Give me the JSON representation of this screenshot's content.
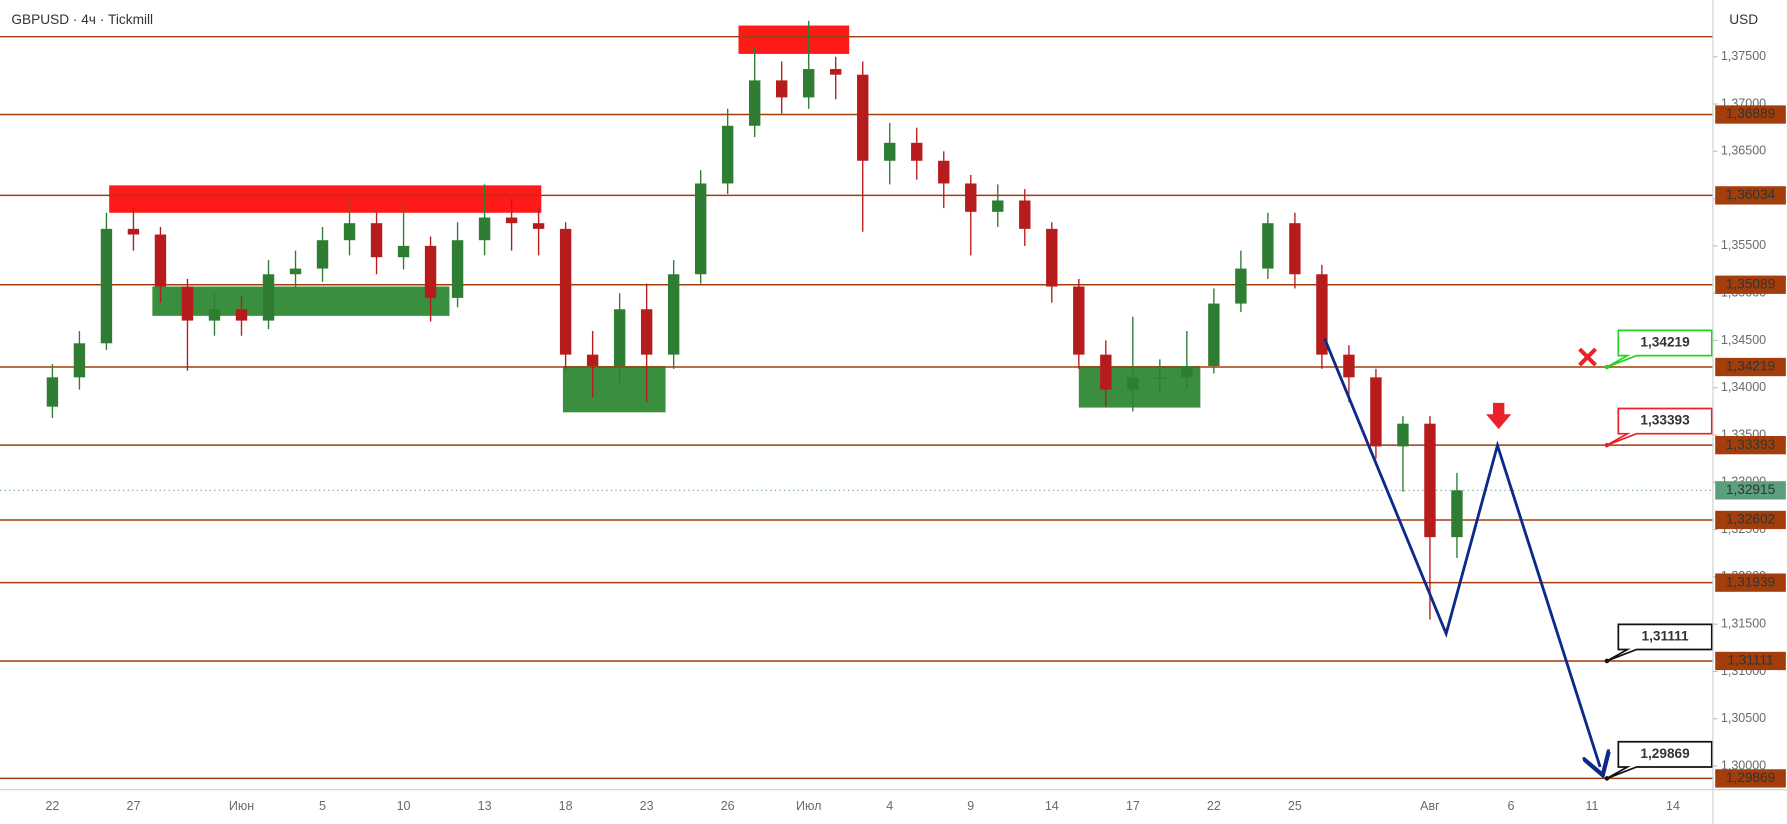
{
  "chart_data": {
    "type": "candlestick",
    "title": "GBPUSD · 4ч · Tickmill",
    "currency": "USD",
    "categories": [
      "22",
      null,
      null,
      "27",
      null,
      null,
      null,
      "Июн",
      null,
      null,
      "5",
      null,
      null,
      "10",
      null,
      null,
      "13",
      null,
      null,
      "18",
      null,
      null,
      "23",
      null,
      null,
      "26",
      null,
      null,
      "Июл",
      null,
      null,
      "4",
      null,
      null,
      "9",
      null,
      null,
      "14",
      null,
      null,
      "17",
      null,
      null,
      "22",
      null,
      null,
      "25",
      null,
      null,
      null,
      null,
      "Авг",
      null,
      null,
      "6",
      null,
      null,
      "11",
      null,
      null,
      "14"
    ],
    "ohlc": {
      "open": [
        1.338,
        1.3411,
        1.3447,
        1.3568,
        1.3562,
        1.3507,
        1.3471,
        1.3483,
        1.3471,
        1.352,
        1.3526,
        1.3556,
        1.3574,
        1.3538,
        1.355,
        1.3495,
        1.3556,
        1.358,
        1.3574,
        1.3568,
        1.3435,
        1.3423,
        1.3483,
        1.3435,
        1.352,
        1.3616,
        1.3677,
        1.3725,
        1.3707,
        1.3737,
        1.3731,
        1.364,
        1.3659,
        1.364,
        1.3616,
        1.3586,
        1.3598,
        1.3568,
        1.3507,
        1.3435,
        1.3398,
        1.3411,
        1.3411,
        1.3423,
        1.3489,
        1.3526,
        1.3574,
        1.352,
        1.3435,
        1.3411,
        1.3338,
        1.3362,
        1.3242,
        null,
        null,
        null,
        null,
        null,
        null,
        null,
        null
      ],
      "high": [
        1.3425,
        1.346,
        1.3585,
        1.359,
        1.357,
        1.3515,
        1.35,
        1.3497,
        1.3535,
        1.3545,
        1.357,
        1.36,
        1.3585,
        1.3595,
        1.356,
        1.3575,
        1.3615,
        1.36,
        1.359,
        1.3575,
        1.346,
        1.35,
        1.351,
        1.3535,
        1.363,
        1.3695,
        1.376,
        1.3745,
        1.3788,
        1.375,
        1.3745,
        1.368,
        1.3675,
        1.365,
        1.3625,
        1.3615,
        1.361,
        1.3575,
        1.3515,
        1.345,
        1.3475,
        1.343,
        1.346,
        1.3505,
        1.3545,
        1.3585,
        1.3585,
        1.353,
        1.3445,
        1.342,
        1.337,
        1.337,
        1.331,
        null,
        null,
        null,
        null,
        null,
        null,
        null,
        null
      ],
      "low": [
        1.3368,
        1.3398,
        1.344,
        1.3545,
        1.349,
        1.3418,
        1.3455,
        1.3455,
        1.3462,
        1.3505,
        1.3512,
        1.354,
        1.352,
        1.3525,
        1.347,
        1.3485,
        1.354,
        1.3545,
        1.354,
        1.342,
        1.339,
        1.3405,
        1.3385,
        1.342,
        1.351,
        1.3605,
        1.3665,
        1.369,
        1.3695,
        1.3705,
        1.3565,
        1.3615,
        1.362,
        1.359,
        1.354,
        1.357,
        1.355,
        1.349,
        1.342,
        1.338,
        1.3375,
        1.3395,
        1.34,
        1.3415,
        1.348,
        1.3515,
        1.3505,
        1.342,
        1.3385,
        1.3325,
        1.329,
        1.3155,
        1.322,
        null,
        null,
        null,
        null,
        null,
        null,
        null,
        null
      ],
      "close": [
        1.3411,
        1.3447,
        1.3568,
        1.3562,
        1.3507,
        1.3471,
        1.3483,
        1.3471,
        1.352,
        1.3526,
        1.3556,
        1.3574,
        1.3538,
        1.355,
        1.3495,
        1.3556,
        1.358,
        1.3574,
        1.3568,
        1.3435,
        1.3423,
        1.3483,
        1.3435,
        1.352,
        1.3616,
        1.3677,
        1.3725,
        1.3707,
        1.3737,
        1.3731,
        1.364,
        1.3659,
        1.364,
        1.3616,
        1.3586,
        1.3598,
        1.3568,
        1.3507,
        1.3435,
        1.3398,
        1.3411,
        1.3411,
        1.3423,
        1.3489,
        1.3526,
        1.3574,
        1.352,
        1.3435,
        1.3411,
        1.3338,
        1.3362,
        1.3242,
        1.32915,
        null,
        null,
        null,
        null,
        null,
        null,
        null,
        null
      ]
    },
    "up_color": "#2e7d32",
    "down_color": "#b71c1c",
    "ylim": [
      1.2975,
      1.381
    ],
    "yticks": [
      {
        "value": 1.375,
        "label": "1,37500"
      },
      {
        "value": 1.37,
        "label": "1,37000"
      },
      {
        "value": 1.365,
        "label": "1,36500"
      },
      {
        "value": 1.36,
        "label": "1,36000"
      },
      {
        "value": 1.355,
        "label": "1,35500"
      },
      {
        "value": 1.35,
        "label": "1,35000"
      },
      {
        "value": 1.345,
        "label": "1,34500"
      },
      {
        "value": 1.34,
        "label": "1,34000"
      },
      {
        "value": 1.335,
        "label": "1,33500"
      },
      {
        "value": 1.33,
        "label": "1,33000"
      },
      {
        "value": 1.325,
        "label": "1,32500"
      },
      {
        "value": 1.32,
        "label": "1,32000"
      },
      {
        "value": 1.315,
        "label": "1,31500"
      },
      {
        "value": 1.31,
        "label": "1,31000"
      },
      {
        "value": 1.305,
        "label": "1,30500"
      },
      {
        "value": 1.3,
        "label": "1,30000"
      }
    ],
    "levels": {
      "color": "#a23e0c",
      "values": [
        1.37712,
        1.36889,
        1.36034,
        1.35089,
        1.34219,
        1.33393,
        1.32602,
        1.31939,
        1.31111,
        1.29869
      ],
      "labels": [
        null,
        "1,36889",
        "1,36034",
        "1,35089",
        "1,34219",
        "1,33393",
        "1,32602",
        "1,31939",
        "1,31111",
        "1,29869"
      ]
    },
    "last_price": {
      "value": 1.32915,
      "label": "1,32915",
      "color": "#5b9f7f"
    },
    "zones": [
      {
        "start": 2.1,
        "end": 18.1,
        "low": 1.3585,
        "high": 1.3614,
        "color": "#ff1a1a"
      },
      {
        "start": 3.7,
        "end": 14.7,
        "low": 1.3476,
        "high": 1.3507,
        "color": "#3a8f3e"
      },
      {
        "start": 18.9,
        "end": 22.7,
        "low": 1.3374,
        "high": 1.3423,
        "color": "#3a8f3e"
      },
      {
        "start": 25.4,
        "end": 29.5,
        "low": 1.3753,
        "high": 1.3783,
        "color": "#ff1a1a"
      },
      {
        "start": 38.0,
        "end": 42.5,
        "low": 1.3379,
        "high": 1.3423,
        "color": "#3a8f3e"
      }
    ],
    "projection": {
      "color": "#0d2a8a",
      "x": [
        47.1,
        51.6,
        53.5,
        57.3
      ],
      "values": [
        1.3452,
        1.314,
        1.3339,
        1.2999
      ]
    },
    "annotations": [
      {
        "label": "1,34219",
        "value": 1.34219,
        "color": "#22d422"
      },
      {
        "label": "1,33393",
        "value": 1.33393,
        "color": "#e8212b"
      },
      {
        "label": "1,31111",
        "value": 1.31111,
        "color": "#111111"
      },
      {
        "label": "1,29869",
        "value": 1.29869,
        "color": "#111111"
      }
    ]
  }
}
